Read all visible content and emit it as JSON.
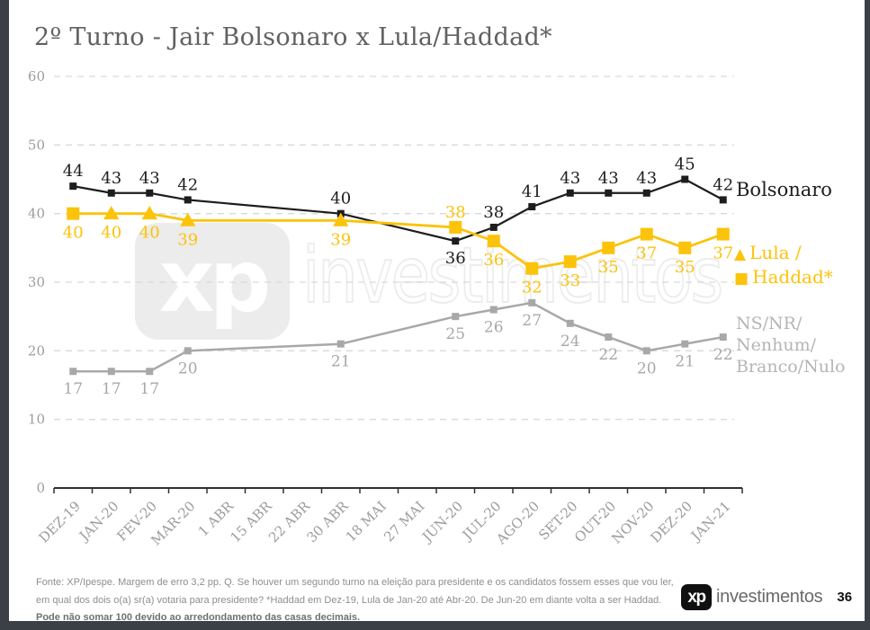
{
  "title": "2º Turno - Jair Bolsonaro x Lula/Haddad*",
  "colors": {
    "bolsonaro": "#1d1d1d",
    "lula_haddad": "#fcc30b",
    "ns_nr": "#a8a8a8",
    "grid": "#d9d9d9",
    "axis": "#303030",
    "tick_label": "#9c9c9c",
    "frame": "#3b4046"
  },
  "chart_data": {
    "type": "line",
    "title": "2º Turno - Jair Bolsonaro x Lula/Haddad*",
    "categories": [
      "DEZ-19",
      "JAN-20",
      "FEV-20",
      "MAR-20",
      "1 ABR",
      "15 ABR",
      "22 ABR",
      "30 ABR",
      "18 MAI",
      "27 MAI",
      "JUN-20",
      "JUL-20",
      "AGO-20",
      "SET-20",
      "OUT-20",
      "NOV-20",
      "DEZ-20",
      "JAN-21"
    ],
    "point_category_indices": [
      0,
      1,
      2,
      3,
      7,
      10,
      11,
      12,
      13,
      14,
      15,
      16,
      17
    ],
    "ylim": [
      0,
      60
    ],
    "yticks": [
      0,
      10,
      20,
      30,
      40,
      50,
      60
    ],
    "grid": "horizontal-dashed",
    "legend_position": "right",
    "series": [
      {
        "id": "bolsonaro",
        "name": "Bolsonaro",
        "color": "#1d1d1d",
        "marker": "square",
        "values": [
          44,
          43,
          43,
          42,
          40,
          36,
          38,
          41,
          43,
          43,
          43,
          45,
          42
        ],
        "label_side": [
          "above",
          "above",
          "above",
          "above",
          "above",
          "below",
          "above",
          "above",
          "above",
          "above",
          "above",
          "above",
          "above"
        ]
      },
      {
        "id": "lula-haddad",
        "name": "Lula / Haddad*",
        "color": "#fcc30b",
        "markers": [
          "square",
          "triangle",
          "triangle",
          "triangle",
          "triangle",
          "square",
          "square",
          "square",
          "square",
          "square",
          "square",
          "square",
          "square"
        ],
        "values": [
          40,
          40,
          40,
          39,
          39,
          38,
          36,
          32,
          33,
          35,
          37,
          35,
          37
        ],
        "label_side": [
          "below",
          "below",
          "below",
          "below",
          "below",
          "above",
          "below",
          "below",
          "below",
          "below",
          "below",
          "below",
          "below"
        ]
      },
      {
        "id": "ns-nr",
        "name": "NS/NR/Nenhum/Branco/Nulo",
        "color": "#a8a8a8",
        "marker": "square",
        "values": [
          17,
          17,
          17,
          20,
          21,
          25,
          26,
          27,
          24,
          22,
          20,
          21,
          22
        ],
        "label_side": [
          "below",
          "below",
          "below",
          "below",
          "below",
          "below",
          "below",
          "below",
          "below",
          "below",
          "below",
          "below",
          "below"
        ]
      }
    ]
  },
  "legend": {
    "bolsonaro": "Bolsonaro",
    "lula_marker": "▲",
    "lula": "Lula /",
    "haddad_marker": "■",
    "haddad": "Haddad*",
    "ns_lines": [
      "NS/NR/",
      "Nenhum/",
      "Branco/Nulo"
    ]
  },
  "watermark": {
    "xp": "xp",
    "text": "investimentos"
  },
  "footer": {
    "line1": "Fonte: XP/Ipespe. Margem de erro 3,2 pp. Q. Se houver um segundo turno na eleição para presidente e os candidatos fossem esses que vou ler,",
    "line2": "em qual dos dois o(a) sr(a) votaria para presidente? *Haddad em Dez-19, Lula de Jan-20 até Abr-20. De Jun-20 em diante volta a ser Haddad.",
    "line3": "Pode não somar 100 devido ao arredondamento das casas decimais."
  },
  "logo": {
    "xp": "xp",
    "name": "investimentos",
    "page": "36"
  }
}
